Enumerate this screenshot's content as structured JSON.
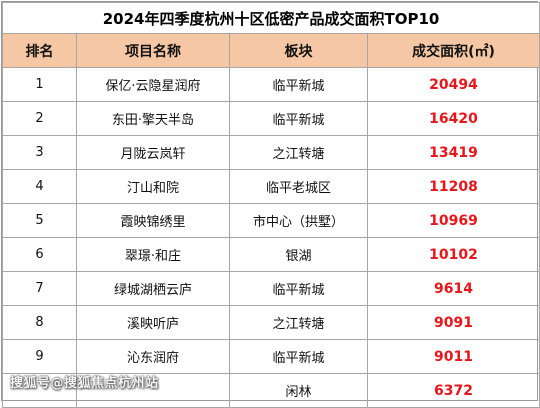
{
  "table": {
    "title": "2024年四季度杭州十区低密产品成交面积TOP10",
    "headers": [
      "排名",
      "项目名称",
      "板块",
      "成交面积(㎡)"
    ],
    "rows": [
      {
        "rank": "1",
        "name": "保亿·云隐星润府",
        "block": "临平新城",
        "area": "20494"
      },
      {
        "rank": "2",
        "name": "东田·擎天半岛",
        "block": "临平新城",
        "area": "16420"
      },
      {
        "rank": "3",
        "name": "月陇云岚轩",
        "block": "之江转塘",
        "area": "13419"
      },
      {
        "rank": "4",
        "name": "汀山和院",
        "block": "临平老城区",
        "area": "11208"
      },
      {
        "rank": "5",
        "name": "霞映锦绣里",
        "block": "市中心（拱墅）",
        "area": "10969"
      },
      {
        "rank": "6",
        "name": "翠璟·和庄",
        "block": "银湖",
        "area": "10102"
      },
      {
        "rank": "7",
        "name": "绿城湖栖云庐",
        "block": "临平新城",
        "area": "9614"
      },
      {
        "rank": "8",
        "name": "溪映听庐",
        "block": "之江转塘",
        "area": "9091"
      },
      {
        "rank": "9",
        "name": "沁东润府",
        "block": "临平新城",
        "area": "9011"
      },
      {
        "rank": "",
        "name": "",
        "block": "闲林",
        "area": "6372"
      }
    ]
  },
  "watermark": "搜狐号@搜狐焦点杭州站",
  "colors": {
    "header_bg": "#f6c7a4",
    "area_text": "#e8161b",
    "grid_line": "#a7a7a7"
  }
}
